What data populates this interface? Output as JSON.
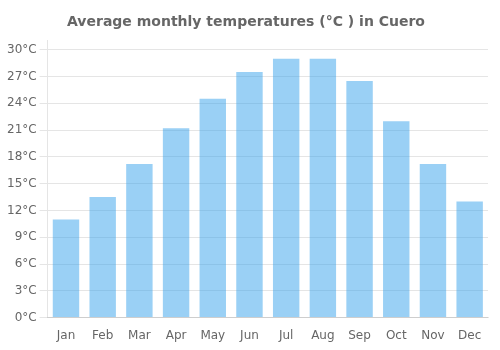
{
  "chart_data": {
    "type": "bar",
    "title": "Average monthly temperatures (°C ) in Cuero",
    "categories": [
      "Jan",
      "Feb",
      "Mar",
      "Apr",
      "May",
      "Jun",
      "Jul",
      "Aug",
      "Sep",
      "Oct",
      "Nov",
      "Dec"
    ],
    "values": [
      11,
      13.5,
      17.2,
      21.2,
      24.5,
      27.5,
      29,
      29,
      26.5,
      22,
      17.2,
      13
    ],
    "ylim": [
      0,
      31
    ],
    "yticks": [
      {
        "value": 0,
        "label": "0°C"
      },
      {
        "value": 3,
        "label": "3°C"
      },
      {
        "value": 6,
        "label": "6°C"
      },
      {
        "value": 9,
        "label": "9°C"
      },
      {
        "value": 12,
        "label": "12°C"
      },
      {
        "value": 15,
        "label": "15°C"
      },
      {
        "value": 18,
        "label": "18°C"
      },
      {
        "value": 21,
        "label": "21°C"
      },
      {
        "value": 24,
        "label": "24°C"
      },
      {
        "value": 27,
        "label": "27°C"
      },
      {
        "value": 30,
        "label": "30°C"
      }
    ],
    "grid": true
  }
}
